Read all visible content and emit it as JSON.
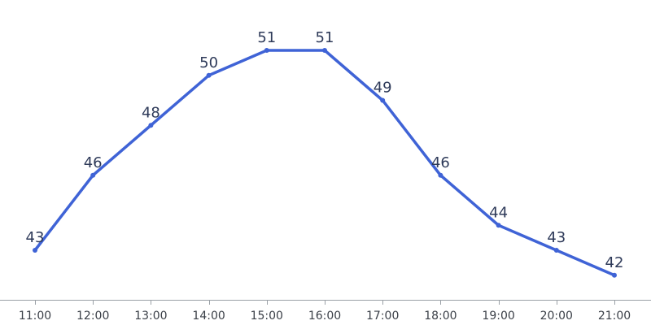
{
  "chart_data": {
    "type": "line",
    "categories": [
      "11:00",
      "12:00",
      "13:00",
      "14:00",
      "15:00",
      "16:00",
      "17:00",
      "18:00",
      "19:00",
      "20:00",
      "21:00"
    ],
    "values": [
      43,
      46,
      48,
      50,
      51,
      51,
      49,
      46,
      44,
      43,
      42
    ],
    "data_labels": [
      "43",
      "46",
      "48",
      "50",
      "51",
      "51",
      "49",
      "46",
      "44",
      "43",
      "42"
    ],
    "title": "",
    "xlabel": "",
    "ylabel": "",
    "ylim": [
      41,
      52
    ],
    "grid": false,
    "legend": "none",
    "colors": {
      "line": "#3f63d6",
      "axis": "#9aa0a6",
      "label": "#2e3a59",
      "tick": "#3a3f47"
    }
  }
}
